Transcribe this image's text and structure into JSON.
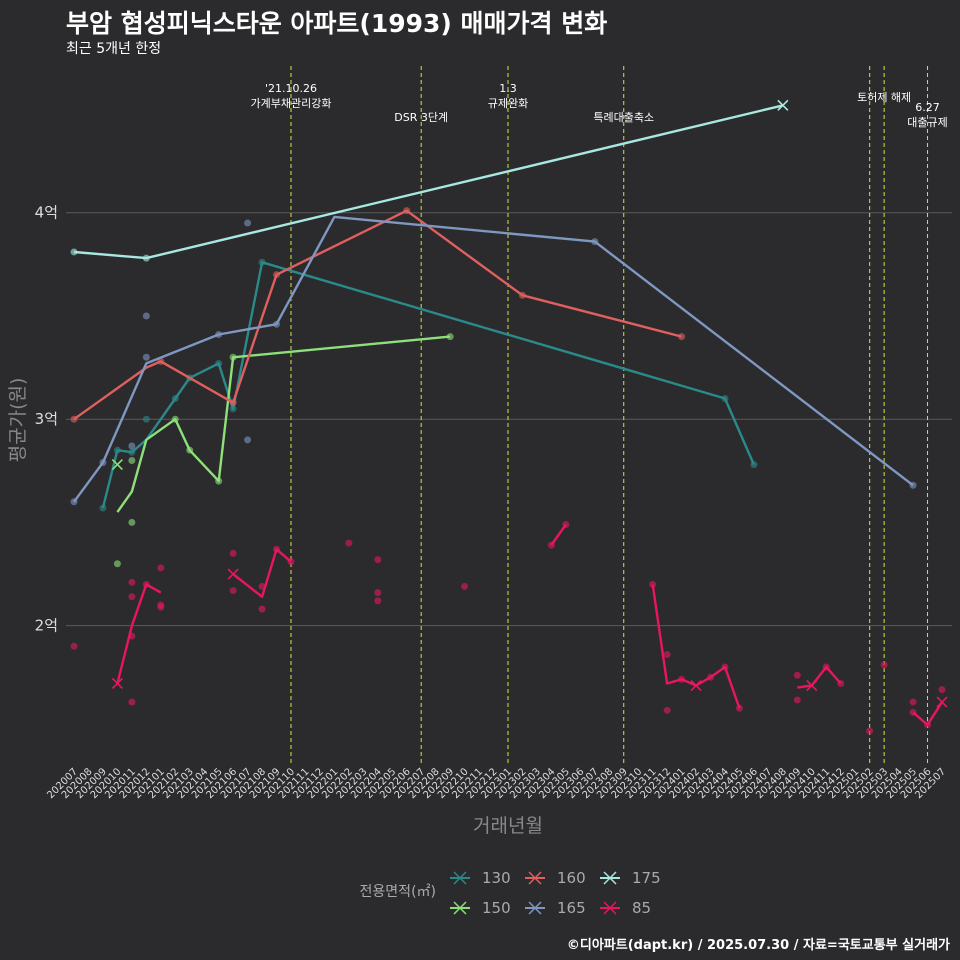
{
  "title": "부암 협성피닉스타운 아파트(1993) 매매가격 변화",
  "subtitle": "최근 5개년 한정",
  "caption": "©디아파트(dapt.kr) / 2025.07.30 / 자료=국토교통부 실거래가",
  "chart_data": {
    "type": "line",
    "xlabel": "거래년월",
    "ylabel": "평균가(원)",
    "x_categories": [
      "202007",
      "202008",
      "202009",
      "202010",
      "202011",
      "202012",
      "202101",
      "202102",
      "202103",
      "202104",
      "202105",
      "202106",
      "202107",
      "202108",
      "202109",
      "202110",
      "202111",
      "202112",
      "202201",
      "202202",
      "202203",
      "202204",
      "202205",
      "202206",
      "202207",
      "202208",
      "202209",
      "202210",
      "202211",
      "202212",
      "202301",
      "202302",
      "202303",
      "202304",
      "202305",
      "202306",
      "202307",
      "202308",
      "202309",
      "202310",
      "202311",
      "202312",
      "202401",
      "202402",
      "202403",
      "202404",
      "202405",
      "202406",
      "202407",
      "202408",
      "202409",
      "202410",
      "202411",
      "202412",
      "202501",
      "202502",
      "202503",
      "202504",
      "202505",
      "202506",
      "202507"
    ],
    "y_ticks": [
      {
        "value": 2,
        "label": "2억"
      },
      {
        "value": 3,
        "label": "3억"
      },
      {
        "value": 4,
        "label": "4억"
      }
    ],
    "y_unit": "억",
    "ylim": [
      1.33,
      4.73
    ],
    "grid": true,
    "legend": {
      "title": "전용면적(㎡)",
      "position": "bottom"
    },
    "events": [
      {
        "x": "202110",
        "label": "'21.10.26\n가계부채관리강화"
      },
      {
        "x": "202207",
        "label": "DSR 3단계"
      },
      {
        "x": "202301",
        "label": "1.3\n규제완화"
      },
      {
        "x": "202309",
        "label": "특례대출축소"
      },
      {
        "x": "202502",
        "label": ""
      },
      {
        "x": "202503",
        "label": "토허제 해제"
      },
      {
        "x": "202506",
        "label": "6.27\n대출규제"
      }
    ],
    "series": [
      {
        "name": "130",
        "color": "#2a8a8a",
        "line": [
          [
            "202009",
            2.57
          ],
          [
            "202010",
            2.85
          ],
          [
            "202011",
            2.84
          ],
          [
            "202012",
            2.9
          ],
          [
            "202102",
            3.1
          ],
          [
            "202103",
            3.2
          ],
          [
            "202105",
            3.27
          ],
          [
            "202106",
            3.05
          ],
          [
            "202108",
            3.76
          ],
          [
            "202404",
            3.1
          ],
          [
            "202406",
            2.78
          ]
        ],
        "points": [
          [
            "202009",
            2.57
          ],
          [
            "202010",
            2.85
          ],
          [
            "202011",
            2.84
          ],
          [
            "202012",
            3.0
          ],
          [
            "202102",
            3.1
          ],
          [
            "202103",
            3.2
          ],
          [
            "202105",
            3.27
          ],
          [
            "202106",
            3.05
          ],
          [
            "202108",
            3.76
          ],
          [
            "202404",
            3.1
          ],
          [
            "202406",
            2.78
          ]
        ],
        "crosses": []
      },
      {
        "name": "150",
        "color": "#8ee07a",
        "line": [
          [
            "202010",
            2.55
          ],
          [
            "202011",
            2.65
          ],
          [
            "202012",
            2.9
          ],
          [
            "202102",
            3.0
          ],
          [
            "202103",
            2.85
          ],
          [
            "202105",
            2.7
          ],
          [
            "202106",
            3.3
          ],
          [
            "202209",
            3.4
          ]
        ],
        "points": [
          [
            "202010",
            2.3
          ],
          [
            "202011",
            2.5
          ],
          [
            "202011",
            2.8
          ],
          [
            "202102",
            3.0
          ],
          [
            "202103",
            2.85
          ],
          [
            "202105",
            2.7
          ],
          [
            "202106",
            3.3
          ],
          [
            "202209",
            3.4
          ]
        ],
        "crosses": [
          [
            "202010",
            2.78
          ]
        ]
      },
      {
        "name": "160",
        "color": "#e05f5f",
        "line": [
          [
            "202007",
            3.0
          ],
          [
            "202012",
            3.25
          ],
          [
            "202101",
            3.28
          ],
          [
            "202106",
            3.08
          ],
          [
            "202109",
            3.7
          ],
          [
            "202206",
            4.01
          ],
          [
            "202302",
            3.6
          ],
          [
            "202401",
            3.4
          ]
        ],
        "points": [
          [
            "202007",
            3.0
          ],
          [
            "202101",
            3.28
          ],
          [
            "202106",
            3.08
          ],
          [
            "202109",
            3.7
          ],
          [
            "202206",
            4.01
          ],
          [
            "202302",
            3.6
          ],
          [
            "202401",
            3.4
          ]
        ],
        "crosses": []
      },
      {
        "name": "165",
        "color": "#7f98c2",
        "line": [
          [
            "202007",
            2.6
          ],
          [
            "202009",
            2.79
          ],
          [
            "202012",
            3.27
          ],
          [
            "202105",
            3.41
          ],
          [
            "202109",
            3.46
          ],
          [
            "202201",
            3.98
          ],
          [
            "202307",
            3.86
          ],
          [
            "202505",
            2.68
          ]
        ],
        "points": [
          [
            "202007",
            2.6
          ],
          [
            "202009",
            2.79
          ],
          [
            "202011",
            2.87
          ],
          [
            "202012",
            3.5
          ],
          [
            "202012",
            3.3
          ],
          [
            "202105",
            3.41
          ],
          [
            "202107",
            3.95
          ],
          [
            "202107",
            2.9
          ],
          [
            "202109",
            3.46
          ],
          [
            "202307",
            3.86
          ],
          [
            "202505",
            2.68
          ]
        ],
        "crosses": []
      },
      {
        "name": "175",
        "color": "#a8e8e0",
        "line": [
          [
            "202007",
            3.81
          ],
          [
            "202012",
            3.78
          ],
          [
            "202408",
            4.52
          ]
        ],
        "points": [
          [
            "202007",
            3.81
          ],
          [
            "202012",
            3.78
          ]
        ],
        "crosses": [
          [
            "202408",
            4.52
          ]
        ]
      },
      {
        "name": "85",
        "color": "#e8165f",
        "segments": [
          [
            [
              "202010",
              1.72
            ],
            [
              "202011",
              2.0
            ],
            [
              "202012",
              2.2
            ],
            [
              "202101",
              2.16
            ]
          ],
          [
            [
              "202106",
              2.25
            ],
            [
              "202108",
              2.14
            ],
            [
              "202109",
              2.37
            ],
            [
              "202110",
              2.31
            ]
          ],
          [
            [
              "202304",
              2.39
            ],
            [
              "202305",
              2.49
            ]
          ],
          [
            [
              "202311",
              2.2
            ],
            [
              "202312",
              1.72
            ],
            [
              "202401",
              1.74
            ],
            [
              "202402",
              1.71
            ],
            [
              "202403",
              1.75
            ],
            [
              "202404",
              1.8
            ],
            [
              "202405",
              1.6
            ]
          ],
          [
            [
              "202409",
              1.7
            ],
            [
              "202410",
              1.71
            ],
            [
              "202411",
              1.8
            ],
            [
              "202412",
              1.72
            ]
          ],
          [
            [
              "202505",
              1.58
            ],
            [
              "202506",
              1.52
            ],
            [
              "202507",
              1.63
            ]
          ]
        ],
        "points": [
          [
            "202007",
            1.9
          ],
          [
            "202011",
            2.21
          ],
          [
            "202011",
            2.14
          ],
          [
            "202011",
            1.95
          ],
          [
            "202011",
            1.63
          ],
          [
            "202012",
            2.2
          ],
          [
            "202101",
            2.28
          ],
          [
            "202101",
            2.1
          ],
          [
            "202101",
            2.09
          ],
          [
            "202106",
            2.35
          ],
          [
            "202106",
            2.17
          ],
          [
            "202108",
            2.19
          ],
          [
            "202108",
            2.08
          ],
          [
            "202109",
            2.37
          ],
          [
            "202110",
            2.31
          ],
          [
            "202202",
            2.4
          ],
          [
            "202204",
            2.32
          ],
          [
            "202204",
            2.16
          ],
          [
            "202204",
            2.12
          ],
          [
            "202210",
            2.19
          ],
          [
            "202304",
            2.39
          ],
          [
            "202305",
            2.49
          ],
          [
            "202311",
            2.2
          ],
          [
            "202312",
            1.86
          ],
          [
            "202312",
            1.59
          ],
          [
            "202401",
            1.74
          ],
          [
            "202403",
            1.75
          ],
          [
            "202404",
            1.8
          ],
          [
            "202405",
            1.6
          ],
          [
            "202409",
            1.76
          ],
          [
            "202409",
            1.64
          ],
          [
            "202411",
            1.8
          ],
          [
            "202412",
            1.72
          ],
          [
            "202502",
            1.49
          ],
          [
            "202503",
            1.81
          ],
          [
            "202505",
            1.63
          ],
          [
            "202505",
            1.58
          ],
          [
            "202506",
            1.52
          ],
          [
            "202507",
            1.69
          ]
        ],
        "crosses": [
          [
            "202010",
            1.72
          ],
          [
            "202106",
            2.25
          ],
          [
            "202402",
            1.71
          ],
          [
            "202410",
            1.71
          ],
          [
            "202507",
            1.63
          ]
        ]
      }
    ]
  }
}
